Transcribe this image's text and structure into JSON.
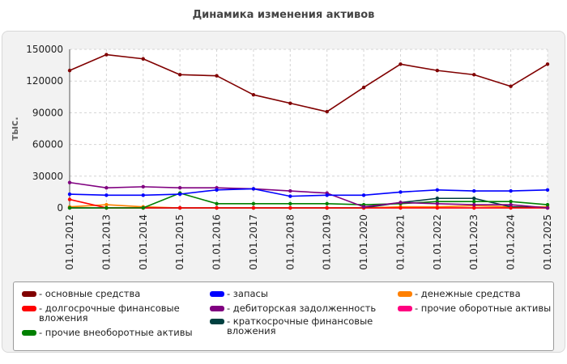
{
  "chart_data": {
    "type": "line",
    "title": "Динамика изменения активов",
    "ylabel": "тыс.",
    "xlabel": "",
    "ylim": [
      0,
      150000
    ],
    "yticks": [
      0,
      30000,
      60000,
      90000,
      120000,
      150000
    ],
    "grid": true,
    "legend_position": "bottom",
    "categories": [
      "01.01.2012",
      "01.01.2013",
      "01.01.2014",
      "01.01.2015",
      "01.01.2016",
      "01.01.2017",
      "01.01.2018",
      "01.01.2019",
      "01.01.2020",
      "01.01.2021",
      "01.01.2022",
      "01.01.2023",
      "01.01.2024",
      "01.01.2025"
    ],
    "series": [
      {
        "name": "основные средства",
        "color": "#800000",
        "values": [
          130000,
          145000,
          141000,
          126000,
          125000,
          107000,
          99000,
          91000,
          114000,
          136000,
          130000,
          126000,
          115000,
          136000
        ]
      },
      {
        "name": "долгосрочные финансовые вложения",
        "color": "#ff0000",
        "values": [
          8000,
          0,
          0,
          0,
          0,
          0,
          0,
          0,
          0,
          0,
          0,
          0,
          0,
          0
        ]
      },
      {
        "name": "прочие внеоборотные активы",
        "color": "#008000",
        "values": [
          0,
          0,
          0,
          14000,
          4000,
          4000,
          4000,
          4000,
          3000,
          4000,
          6000,
          6000,
          6000,
          3000
        ]
      },
      {
        "name": "запасы",
        "color": "#0000ff",
        "values": [
          13000,
          12000,
          12000,
          13000,
          17000,
          18000,
          11000,
          12000,
          12000,
          15000,
          17000,
          16000,
          16000,
          17000
        ]
      },
      {
        "name": "дебиторская задолженность",
        "color": "#800080",
        "values": [
          24000,
          19000,
          20000,
          19000,
          19000,
          18000,
          16000,
          14000,
          1000,
          5000,
          4000,
          3000,
          3000,
          0
        ]
      },
      {
        "name": "краткосрочные финансовые вложения",
        "color": "#004040",
        "values": [
          0,
          0,
          0,
          0,
          0,
          0,
          0,
          0,
          0,
          5000,
          9000,
          9000,
          1000,
          0
        ]
      },
      {
        "name": "денежные средства",
        "color": "#ff8000",
        "values": [
          1000,
          3000,
          1000,
          0,
          0,
          0,
          0,
          0,
          0,
          1000,
          1000,
          2000,
          1000,
          1000
        ]
      },
      {
        "name": "прочие оборотные активы",
        "color": "#ff0080",
        "values": [
          0,
          0,
          0,
          0,
          0,
          0,
          0,
          0,
          0,
          0,
          0,
          0,
          0,
          0
        ]
      }
    ]
  }
}
